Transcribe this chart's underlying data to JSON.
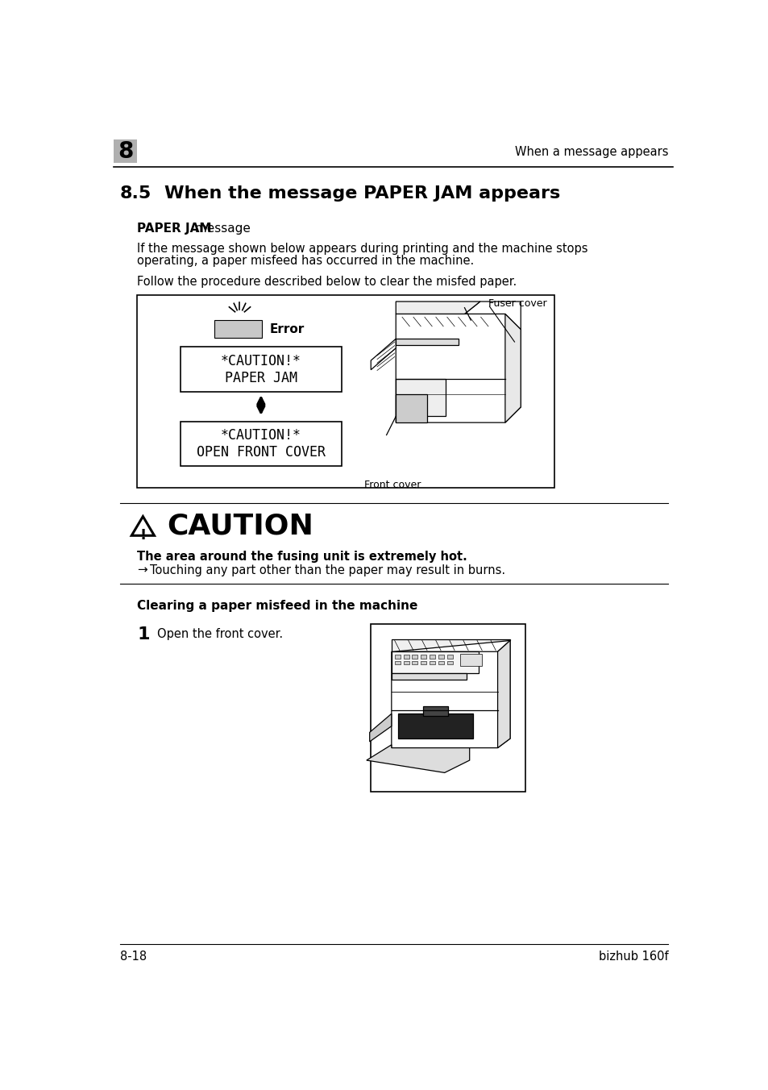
{
  "page_bg": "#ffffff",
  "header_number": "8",
  "header_number_bg": "#b0b0b0",
  "header_right_text": "When a message appears",
  "footer_left": "8-18",
  "footer_right": "bizhub 160f",
  "section_number": "8.5",
  "section_title_rest": "When the message PAPER JAM appears",
  "subsection1_bold": "PAPER JAM",
  "subsection1_rest": " message",
  "para1_line1": "If the message shown below appears during printing and the machine stops",
  "para1_line2": "operating, a paper misfeed has occurred in the machine.",
  "para2": "Follow the procedure described below to clear the misfed paper.",
  "box1_line1": "*CAUTION!*",
  "box1_line2": "PAPER JAM",
  "box2_line1": "*CAUTION!*",
  "box2_line2": "OPEN FRONT COVER",
  "error_label": "Error",
  "fuser_label": "Fuser cover",
  "front_label": "Front cover",
  "caution_title": "CAUTION",
  "caution_bold": "The area around the fusing unit is extremely hot.",
  "caution_text": "Touching any part other than the paper may result in burns.",
  "clearing_title": "Clearing a paper misfeed in the machine",
  "step1_num": "1",
  "step1_text": "Open the front cover."
}
